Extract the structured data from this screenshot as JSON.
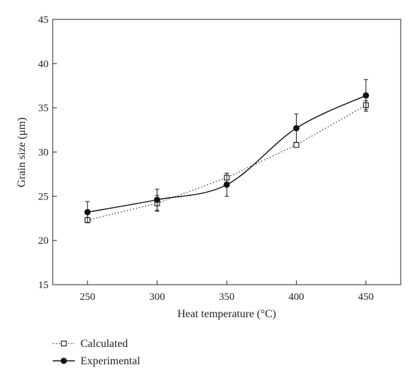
{
  "chart_data": {
    "type": "line",
    "x": [
      250,
      300,
      350,
      400,
      450
    ],
    "xlabel": "Heat temperature (°C)",
    "ylabel": "Grain size (μm)",
    "xlim": [
      225,
      475
    ],
    "ylim": [
      15,
      45
    ],
    "xticks": [
      "250",
      "300",
      "350",
      "400",
      "450"
    ],
    "yticks": [
      "15",
      "20",
      "25",
      "30",
      "35",
      "40",
      "45"
    ],
    "grid": false,
    "legend_position": "bottom-left outside",
    "series": [
      {
        "name": "Calculated",
        "values": [
          22.3,
          24.2,
          27.1,
          30.8,
          35.3
        ],
        "errors": [
          0.3,
          0.9,
          0.5,
          0,
          0.5
        ],
        "marker": "open-square",
        "line_style": "dotted",
        "color": "#222222"
      },
      {
        "name": "Experimental",
        "values": [
          23.2,
          24.6,
          26.3,
          32.7,
          36.4
        ],
        "errors": [
          1.2,
          1.2,
          1.3,
          1.6,
          1.8
        ],
        "marker": "filled-circle",
        "line_style": "solid",
        "color": "#111111"
      }
    ]
  }
}
